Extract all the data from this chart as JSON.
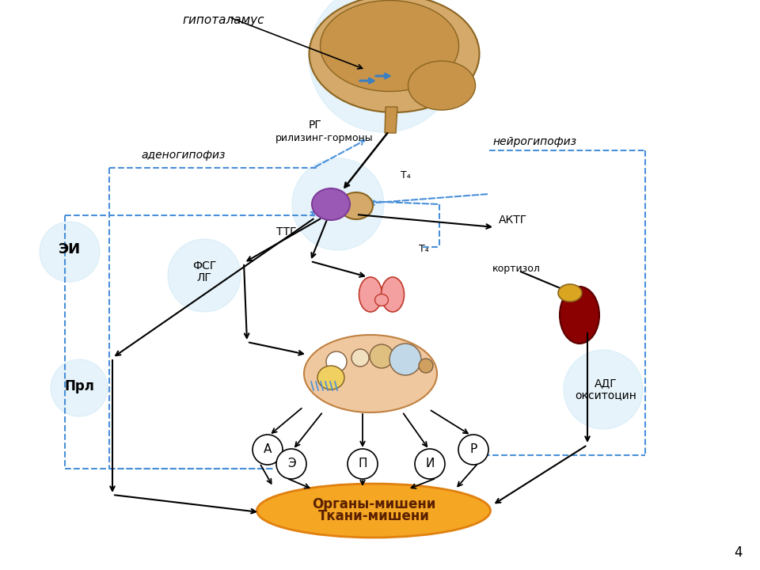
{
  "background_color": "#ffffff",
  "page_number": "4",
  "labels": {
    "hypothalamus": "гипоталамус",
    "adenohypophysis": "аденогипофиз",
    "neurohypophysis": "нейрогипофиз",
    "rg": "РГ",
    "releasing_hormones": "рилизинг-гормоны",
    "ttg": "ТТГ",
    "fsg": "ФСГ",
    "lg": "ЛГ",
    "t4_1": "T₄",
    "t4_2": "T₄",
    "aktg": "АКТГ",
    "kortizol": "кортизол",
    "ei": "ЭИ",
    "prl": "Прл",
    "adg": "АДГ",
    "oksitocin": "окситоцин",
    "organy_misheni": "Органы-мишени",
    "tkani_misheni": "Ткани-мишени",
    "circle_A": "А",
    "circle_E": "Э",
    "circle_P": "П",
    "circle_I": "И",
    "circle_R": "Р"
  },
  "arrow_solid_color": "#000000",
  "arrow_dashed_color": "#4a90d9",
  "glow_color": "#c8e6f5",
  "target_fill": "#f5a623",
  "target_text": "#5a2000",
  "brain_fill": "#d4a96a",
  "brain_edge": "#8B6520",
  "pituitary_purple": "#9b59b6",
  "pituitary_edge": "#7d3c98",
  "neuro_fill": "#d4a96a",
  "thyroid_fill": "#f4a0a0",
  "thyroid_edge": "#c0392b",
  "kidney_fill": "#8B0000",
  "kidney_edge": "#5a0000",
  "adrenal_fill": "#DAA520",
  "adrenal_edge": "#8B6520",
  "ovary_fill": "#f0c8a0",
  "ovary_edge": "#c08040"
}
